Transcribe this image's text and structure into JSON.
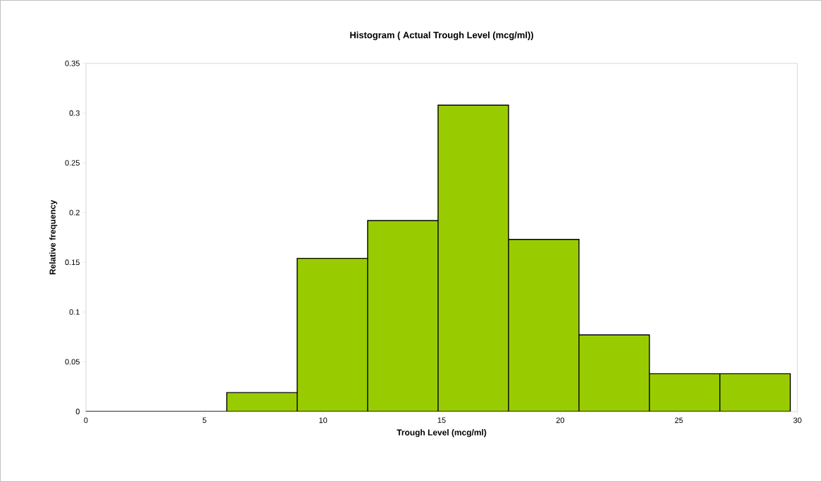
{
  "chart_data": {
    "type": "histogram",
    "title": "Histogram ( Actual Trough Level (mcg/ml))",
    "xlabel": "Trough Level (mcg/ml)",
    "ylabel": "Relative frequency",
    "bins": [
      0,
      2.97,
      5.94,
      8.91,
      11.88,
      14.85,
      17.82,
      20.79,
      23.76,
      26.73,
      29.7
    ],
    "values": [
      0,
      0,
      0.019,
      0.154,
      0.192,
      0.308,
      0.173,
      0.077,
      0.038,
      0.038
    ],
    "color": "#99cc00",
    "xlim": [
      0,
      30
    ],
    "xticks": [
      0,
      5,
      10,
      15,
      20,
      25,
      30
    ],
    "ylim": [
      0,
      0.35
    ],
    "yticks": [
      0,
      0.05,
      0.1,
      0.15,
      0.2,
      0.25,
      0.3,
      0.35
    ],
    "grid": false
  }
}
